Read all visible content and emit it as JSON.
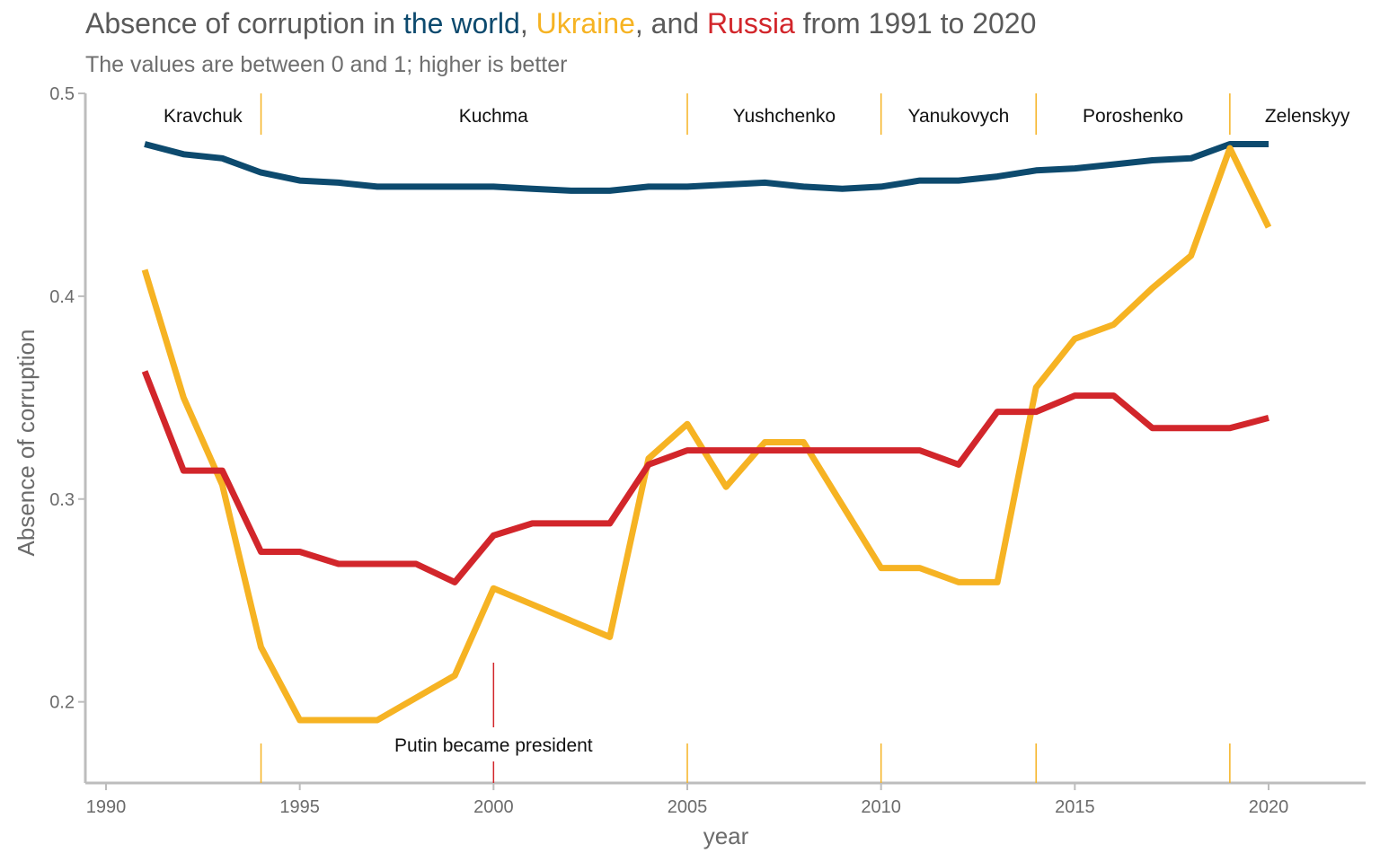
{
  "title": {
    "part1": "Absence of corruption in ",
    "world": "the world",
    "sep1": ", ",
    "ukraine": "Ukraine",
    "sep2": ", and ",
    "russia": "Russia",
    "part2": " from 1991 to 2020"
  },
  "subtitle": "The values are between 0 and 1; higher is better",
  "colors": {
    "world": "#0d4a6e",
    "ukraine": "#f6b323",
    "russia": "#d2262b",
    "text": "#5a5a5a",
    "axis": "#bdbdbd"
  },
  "chart_data": {
    "type": "line",
    "xlabel": "year",
    "ylabel": "Absence of corruption",
    "xlim": [
      1989.5,
      2022.5
    ],
    "ylim": [
      0.16,
      0.5
    ],
    "xticks": [
      1990,
      1995,
      2000,
      2005,
      2010,
      2015,
      2020
    ],
    "yticks": [
      0.2,
      0.3,
      0.4,
      0.5
    ],
    "yticklabels": [
      "0.2",
      "0.3",
      "0.4",
      "0.5"
    ],
    "grid": false,
    "x": [
      1991,
      1992,
      1993,
      1994,
      1995,
      1996,
      1997,
      1998,
      1999,
      2000,
      2001,
      2002,
      2003,
      2004,
      2005,
      2006,
      2007,
      2008,
      2009,
      2010,
      2011,
      2012,
      2013,
      2014,
      2015,
      2016,
      2017,
      2018,
      2019,
      2020
    ],
    "series": [
      {
        "key": "world",
        "values": [
          0.475,
          0.47,
          0.468,
          0.461,
          0.457,
          0.456,
          0.454,
          0.454,
          0.454,
          0.454,
          0.453,
          0.452,
          0.452,
          0.454,
          0.454,
          0.455,
          0.456,
          0.454,
          0.453,
          0.454,
          0.457,
          0.457,
          0.459,
          0.462,
          0.463,
          0.465,
          0.467,
          0.468,
          0.475,
          0.475
        ]
      },
      {
        "key": "ukraine",
        "values": [
          0.413,
          0.35,
          0.307,
          0.227,
          0.191,
          0.191,
          0.191,
          0.202,
          0.213,
          0.256,
          0.248,
          0.24,
          0.232,
          0.32,
          0.337,
          0.306,
          0.328,
          0.328,
          0.297,
          0.266,
          0.266,
          0.259,
          0.259,
          0.355,
          0.379,
          0.386,
          0.404,
          0.42,
          0.473,
          0.434
        ]
      },
      {
        "key": "russia",
        "values": [
          0.363,
          0.314,
          0.314,
          0.274,
          0.274,
          0.268,
          0.268,
          0.268,
          0.259,
          0.282,
          0.288,
          0.288,
          0.288,
          0.317,
          0.324,
          0.324,
          0.324,
          0.324,
          0.324,
          0.324,
          0.324,
          0.317,
          0.343,
          0.343,
          0.351,
          0.351,
          0.335,
          0.335,
          0.335,
          0.34
        ]
      }
    ],
    "presidents": [
      {
        "name": "Kravchuk",
        "x": 1992.5
      },
      {
        "name": "Kuchma",
        "x": 2000
      },
      {
        "name": "Yushchenko",
        "x": 2007.5
      },
      {
        "name": "Yanukovych",
        "x": 2012
      },
      {
        "name": "Poroshenko",
        "x": 2016.5
      },
      {
        "name": "Zelenskyy",
        "x": 2021
      }
    ],
    "transitions": [
      1994,
      2005,
      2010,
      2014,
      2019
    ],
    "putin": {
      "label": "Putin became president",
      "x": 2000
    }
  }
}
